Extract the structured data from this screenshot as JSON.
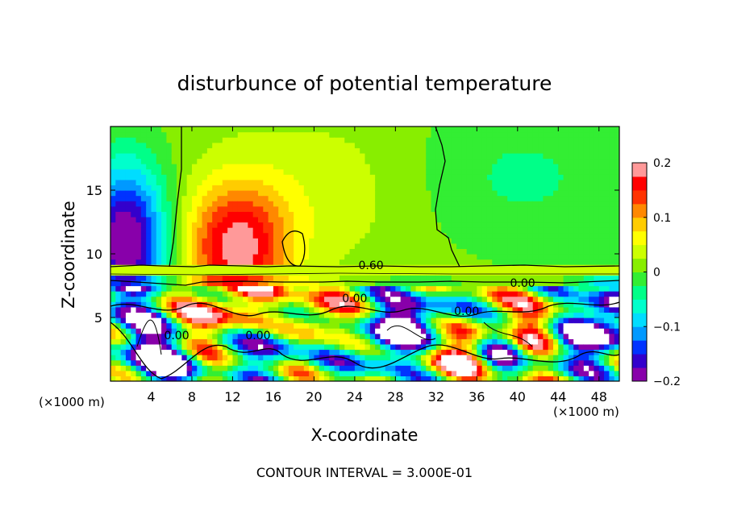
{
  "chart_data": {
    "type": "heatmap",
    "title": "disturbunce of potential temperature",
    "xlabel": "X-coordinate",
    "ylabel": "Z-coordinate",
    "x_unit_label": "(×1000 m)",
    "z_unit_label": "(×1000 m)",
    "xlim": [
      0,
      50
    ],
    "ylim": [
      0,
      20
    ],
    "xticks": [
      4,
      8,
      12,
      16,
      20,
      24,
      28,
      32,
      36,
      40,
      44,
      48
    ],
    "yticks": [
      5,
      10,
      15
    ],
    "colorbar": {
      "range": [
        -0.2,
        0.2
      ],
      "tick_values": [
        0.2,
        0.1,
        0,
        -0.1,
        -0.2
      ],
      "tick_labels": [
        "0.2",
        "0.1",
        "0",
        "−0.1",
        "−0.2"
      ],
      "colors": [
        "#8800aa",
        "#3300cc",
        "#0033ff",
        "#0099ff",
        "#00ddff",
        "#00ffcc",
        "#00ff88",
        "#33ee33",
        "#88ee00",
        "#ccff00",
        "#ffff00",
        "#ffcc00",
        "#ff8800",
        "#ff3300",
        "#ff0000",
        "#ff9999"
      ]
    },
    "contour_labels": [
      {
        "text": "0.60",
        "x": 25.6,
        "z": 8.8
      },
      {
        "text": "0.00",
        "x": 40.5,
        "z": 7.4
      },
      {
        "text": "0.00",
        "x": 6.5,
        "z": 3.3
      },
      {
        "text": "0.00",
        "x": 35.0,
        "z": 5.2
      },
      {
        "text": "0.00",
        "x": 24.0,
        "z": 6.2
      },
      {
        "text": "0.00",
        "x": 14.5,
        "z": 3.3
      }
    ],
    "contour_interval_text": "CONTOUR INTERVAL = 3.000E-01",
    "anomalies": [
      {
        "x": 12.5,
        "z": 10.5,
        "rx": 5.0,
        "rz": 5.0,
        "v": 0.18
      },
      {
        "x": 1.5,
        "z": 11.0,
        "rx": 4.0,
        "rz": 6.0,
        "v": -0.22
      },
      {
        "x": 22.0,
        "z": 15.0,
        "rx": 10.0,
        "rz": 6.0,
        "v": 0.03
      },
      {
        "x": 40.0,
        "z": 16.0,
        "rx": 12.0,
        "rz": 6.0,
        "v": -0.04
      },
      {
        "x": 4.0,
        "z": 2.0,
        "rx": 3.0,
        "rz": 3.0,
        "v": -0.2
      },
      {
        "x": 10.0,
        "z": 5.0,
        "rx": 3.0,
        "rz": 2.0,
        "v": 0.12
      },
      {
        "x": 16.0,
        "z": 3.0,
        "rx": 3.0,
        "rz": 2.5,
        "v": -0.18
      },
      {
        "x": 20.0,
        "z": 5.0,
        "rx": 3.0,
        "rz": 2.0,
        "v": 0.15
      },
      {
        "x": 27.0,
        "z": 2.5,
        "rx": 4.0,
        "rz": 2.5,
        "v": -0.15
      },
      {
        "x": 30.0,
        "z": 5.0,
        "rx": 4.0,
        "rz": 2.0,
        "v": -0.2
      },
      {
        "x": 36.0,
        "z": 3.0,
        "rx": 3.0,
        "rz": 2.5,
        "v": 0.16
      },
      {
        "x": 38.0,
        "z": 2.5,
        "rx": 2.5,
        "rz": 2.0,
        "v": -0.22
      },
      {
        "x": 42.0,
        "z": 4.5,
        "rx": 3.0,
        "rz": 2.0,
        "v": 0.14
      },
      {
        "x": 46.0,
        "z": 3.5,
        "rx": 3.0,
        "rz": 2.5,
        "v": -0.16
      },
      {
        "x": 49.0,
        "z": 5.0,
        "rx": 2.5,
        "rz": 3.0,
        "v": -0.22
      },
      {
        "x": 7.0,
        "z": 1.5,
        "rx": 2.5,
        "rz": 1.5,
        "v": -0.12
      },
      {
        "x": 33.0,
        "z": 1.5,
        "rx": 4.0,
        "rz": 1.5,
        "v": 0.1
      }
    ]
  }
}
